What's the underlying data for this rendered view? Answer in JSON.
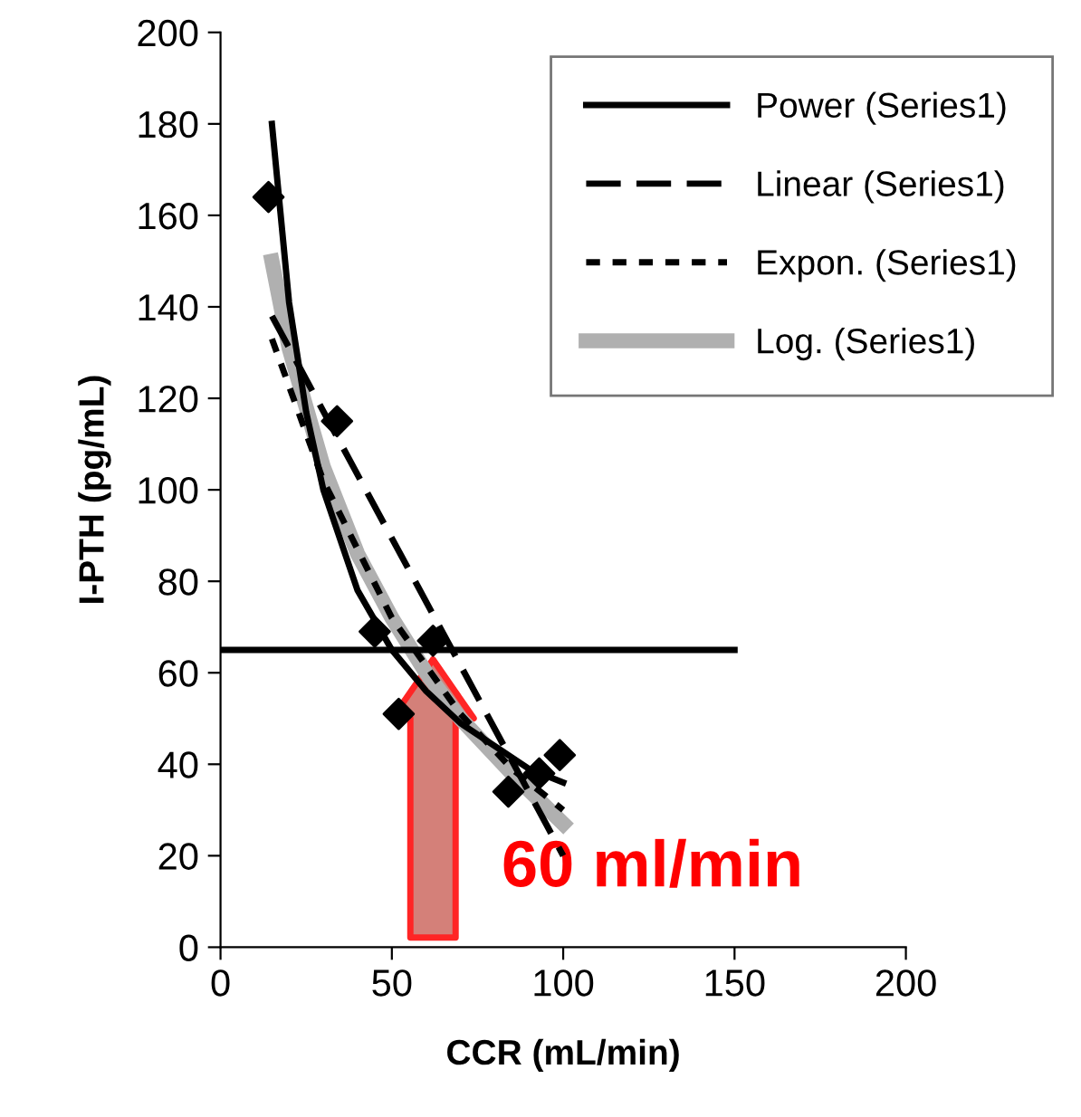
{
  "chart_data": {
    "type": "line",
    "xlabel": "CCR (mL/min)",
    "ylabel": "I-PTH (pg/mL)",
    "xlim": [
      0,
      200
    ],
    "ylim": [
      0,
      200
    ],
    "xticks": [
      0,
      50,
      100,
      150,
      200
    ],
    "yticks": [
      0,
      20,
      40,
      60,
      80,
      100,
      120,
      140,
      160,
      180,
      200
    ],
    "grid": false,
    "legend": "top right",
    "series": [
      {
        "type": "scatter",
        "marker": "diamond",
        "color": "#000000",
        "x": [
          14,
          34,
          45,
          52,
          62,
          84,
          93,
          99
        ],
        "values": [
          164,
          115,
          69,
          51,
          67,
          34,
          38,
          42
        ]
      },
      {
        "name": "Power (Series1)",
        "color": "#000000",
        "line_style": "solid",
        "x": [
          15,
          20,
          25,
          30,
          40,
          50,
          60,
          70,
          80,
          90,
          100
        ],
        "values": [
          180,
          141,
          117,
          100,
          78,
          65,
          56,
          49,
          44,
          39,
          36
        ]
      },
      {
        "name": "Linear (Series1)",
        "color": "#000000",
        "line_style": "longdash",
        "x": [
          15,
          100
        ],
        "values": [
          138,
          20
        ]
      },
      {
        "name": "Expon. (Series1)",
        "color": "#000000",
        "line_style": "dashed",
        "x": [
          15,
          30,
          50,
          70,
          85,
          100
        ],
        "values": [
          133,
          102,
          72,
          51,
          39,
          30
        ]
      },
      {
        "name": "Log. (Series1)",
        "color": "#b0b0b0",
        "line_style": "solid",
        "x": [
          15,
          20,
          30,
          40,
          50,
          60,
          70,
          85,
          100
        ],
        "values": [
          150,
          131,
          105,
          86,
          72,
          60,
          50,
          38,
          27
        ]
      },
      {
        "color": "#000000",
        "line_style": "solid",
        "x": [
          0,
          150
        ],
        "values": [
          65,
          65
        ]
      }
    ],
    "annotations": [
      "60 ml/min"
    ]
  }
}
